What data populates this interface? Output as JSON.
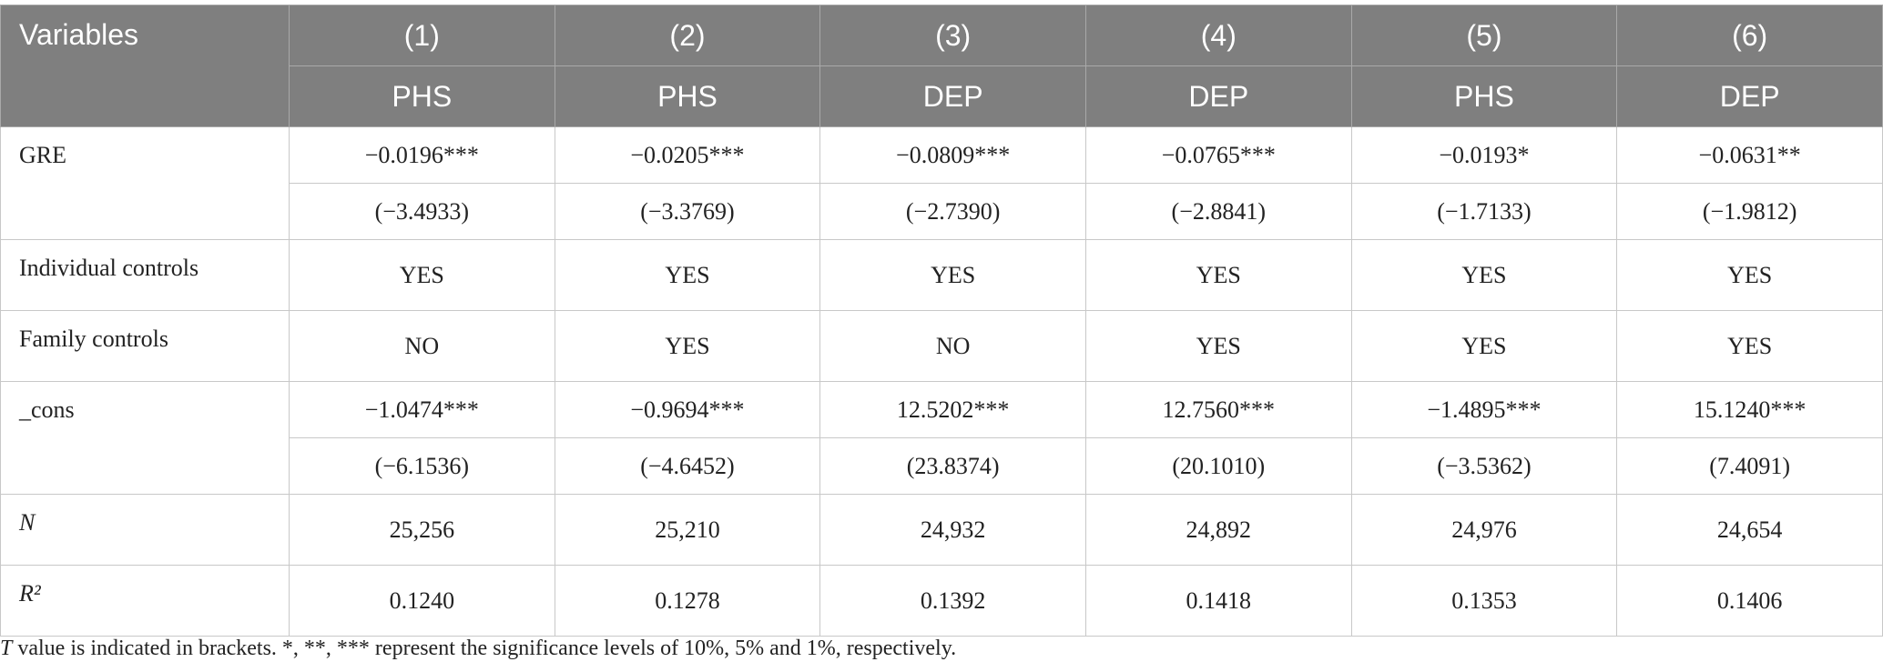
{
  "header": {
    "variables": "Variables",
    "numbers": [
      "(1)",
      "(2)",
      "(3)",
      "(4)",
      "(5)",
      "(6)"
    ],
    "depvars": [
      "PHS",
      "PHS",
      "DEP",
      "DEP",
      "PHS",
      "DEP"
    ]
  },
  "rows": [
    {
      "label": "GRE",
      "lines": [
        [
          "−0.0196***",
          "−0.0205***",
          "−0.0809***",
          "−0.0765***",
          "−0.0193*",
          "−0.0631**"
        ],
        [
          "(−3.4933)",
          "(−3.3769)",
          "(−2.7390)",
          "(−2.8841)",
          "(−1.7133)",
          "(−1.9812)"
        ]
      ]
    },
    {
      "label": "Individual controls",
      "lines": [
        [
          "YES",
          "YES",
          "YES",
          "YES",
          "YES",
          "YES"
        ]
      ]
    },
    {
      "label": "Family controls",
      "lines": [
        [
          "NO",
          "YES",
          "NO",
          "YES",
          "YES",
          "YES"
        ]
      ]
    },
    {
      "label": "_cons",
      "lines": [
        [
          "−1.0474***",
          "−0.9694***",
          "12.5202***",
          "12.7560***",
          "−1.4895***",
          "15.1240***"
        ],
        [
          "(−6.1536)",
          "(−4.6452)",
          "(23.8374)",
          "(20.1010)",
          "(−3.5362)",
          "(7.4091)"
        ]
      ]
    },
    {
      "label": "N",
      "lines": [
        [
          "25,256",
          "25,210",
          "24,932",
          "24,892",
          "24,976",
          "24,654"
        ]
      ]
    },
    {
      "label": "R²",
      "lines": [
        [
          "0.1240",
          "0.1278",
          "0.1392",
          "0.1418",
          "0.1353",
          "0.1406"
        ]
      ]
    }
  ],
  "footnote": {
    "lead": "T",
    "text": " value is indicated in brackets. *, **, *** represent the significance levels of 10%, 5% and 1%, respectively."
  }
}
